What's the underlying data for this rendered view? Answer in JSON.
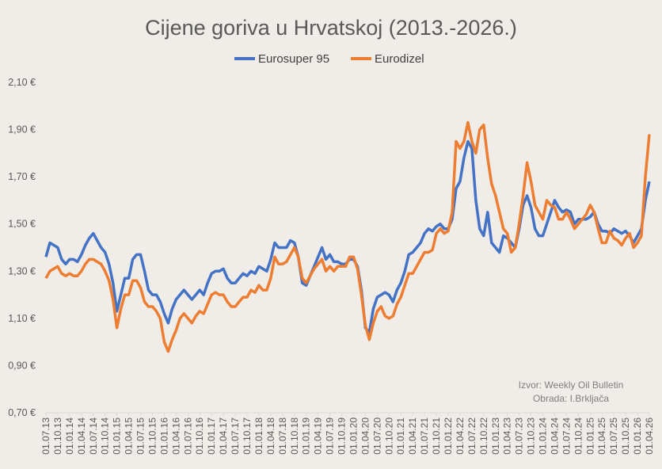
{
  "colors": {
    "eurosuper": "#4472C4",
    "eurodizel": "#ED7D31",
    "background": "#F0EDE9",
    "axis": "#D9D9D9"
  },
  "chart_data": {
    "type": "line",
    "title": "Cijene goriva u Hrvatskoj (2013.-2026.)",
    "xlabel": "",
    "ylabel": "",
    "ylim": [
      0.7,
      2.1
    ],
    "yticks": [
      "0,70 €",
      "0,90 €",
      "1,10 €",
      "1,30 €",
      "1,50 €",
      "1,70 €",
      "1,90 €",
      "2,10 €"
    ],
    "ytick_values": [
      0.7,
      0.9,
      1.1,
      1.3,
      1.5,
      1.7,
      1.9,
      2.1
    ],
    "xticks": [
      "01.07.13",
      "01.10.13",
      "01.01.14",
      "01.04.14",
      "01.07.14",
      "01.10.14",
      "01.01.15",
      "01.04.15",
      "01.07.15",
      "01.10.15",
      "01.01.16",
      "01.04.16",
      "01.07.16",
      "01.10.16",
      "01.01.17",
      "01.04.17",
      "01.07.17",
      "01.10.17",
      "01.01.18",
      "01.04.18",
      "01.07.18",
      "01.10.18",
      "01.01.19",
      "01.04.19",
      "01.07.19",
      "01.10.19",
      "01.01.20",
      "01.04.20",
      "01.07.20",
      "01.10.20",
      "01.01.21",
      "01.04.21",
      "01.07.21",
      "01.10.21",
      "01.01.22",
      "01.04.22",
      "01.07.22",
      "01.10.22",
      "01.01.23",
      "01.04.23",
      "01.07.23",
      "01.10.23",
      "01.01.24",
      "01.04.24",
      "01.07.24",
      "01.10.24",
      "01.01.25",
      "01.04.25",
      "01.07.25",
      "01.10.25",
      "01.01.26",
      "01.04.26"
    ],
    "x_note": "monthly values from 07.2013 to 04.2026",
    "grid": false,
    "legend_position": "top",
    "series": [
      {
        "name": "Eurosuper 95",
        "values": [
          1.36,
          1.42,
          1.41,
          1.4,
          1.35,
          1.33,
          1.35,
          1.35,
          1.34,
          1.37,
          1.41,
          1.44,
          1.46,
          1.43,
          1.4,
          1.38,
          1.33,
          1.25,
          1.13,
          1.2,
          1.27,
          1.27,
          1.35,
          1.37,
          1.37,
          1.3,
          1.22,
          1.2,
          1.2,
          1.17,
          1.12,
          1.08,
          1.14,
          1.18,
          1.2,
          1.22,
          1.2,
          1.18,
          1.2,
          1.22,
          1.2,
          1.25,
          1.29,
          1.3,
          1.3,
          1.31,
          1.27,
          1.25,
          1.25,
          1.27,
          1.29,
          1.28,
          1.3,
          1.29,
          1.32,
          1.31,
          1.3,
          1.35,
          1.42,
          1.4,
          1.4,
          1.4,
          1.43,
          1.42,
          1.36,
          1.25,
          1.24,
          1.28,
          1.32,
          1.36,
          1.4,
          1.35,
          1.37,
          1.34,
          1.34,
          1.33,
          1.33,
          1.35,
          1.35,
          1.32,
          1.22,
          1.06,
          1.04,
          1.14,
          1.19,
          1.2,
          1.21,
          1.2,
          1.17,
          1.22,
          1.25,
          1.3,
          1.37,
          1.38,
          1.4,
          1.42,
          1.46,
          1.48,
          1.47,
          1.49,
          1.5,
          1.48,
          1.48,
          1.52,
          1.65,
          1.68,
          1.78,
          1.85,
          1.82,
          1.6,
          1.48,
          1.45,
          1.55,
          1.42,
          1.4,
          1.38,
          1.45,
          1.44,
          1.42,
          1.4,
          1.48,
          1.58,
          1.62,
          1.57,
          1.48,
          1.45,
          1.45,
          1.5,
          1.55,
          1.6,
          1.57,
          1.55,
          1.56,
          1.55,
          1.5,
          1.52,
          1.52,
          1.52,
          1.53,
          1.55,
          1.5,
          1.47,
          1.47,
          1.46,
          1.48,
          1.47,
          1.46,
          1.47,
          1.45,
          1.42,
          1.45,
          1.48,
          1.6,
          1.68
        ]
      },
      {
        "name": "Eurodizel",
        "values": [
          1.27,
          1.3,
          1.31,
          1.32,
          1.29,
          1.28,
          1.29,
          1.28,
          1.28,
          1.3,
          1.33,
          1.35,
          1.35,
          1.34,
          1.33,
          1.3,
          1.26,
          1.18,
          1.06,
          1.14,
          1.2,
          1.2,
          1.26,
          1.26,
          1.23,
          1.17,
          1.15,
          1.15,
          1.13,
          1.1,
          1.0,
          0.96,
          1.01,
          1.05,
          1.1,
          1.12,
          1.1,
          1.08,
          1.11,
          1.13,
          1.12,
          1.16,
          1.2,
          1.21,
          1.2,
          1.2,
          1.17,
          1.15,
          1.15,
          1.17,
          1.19,
          1.19,
          1.22,
          1.21,
          1.24,
          1.22,
          1.22,
          1.27,
          1.36,
          1.33,
          1.33,
          1.34,
          1.37,
          1.4,
          1.36,
          1.27,
          1.25,
          1.28,
          1.31,
          1.33,
          1.35,
          1.3,
          1.32,
          1.3,
          1.32,
          1.32,
          1.32,
          1.36,
          1.36,
          1.31,
          1.2,
          1.07,
          1.01,
          1.08,
          1.13,
          1.15,
          1.11,
          1.1,
          1.11,
          1.16,
          1.19,
          1.24,
          1.29,
          1.29,
          1.32,
          1.35,
          1.38,
          1.38,
          1.39,
          1.46,
          1.48,
          1.46,
          1.47,
          1.55,
          1.85,
          1.82,
          1.85,
          1.93,
          1.85,
          1.8,
          1.9,
          1.92,
          1.78,
          1.67,
          1.62,
          1.55,
          1.48,
          1.46,
          1.38,
          1.4,
          1.5,
          1.62,
          1.76,
          1.68,
          1.58,
          1.55,
          1.52,
          1.6,
          1.58,
          1.57,
          1.52,
          1.52,
          1.55,
          1.52,
          1.48,
          1.5,
          1.52,
          1.54,
          1.58,
          1.55,
          1.48,
          1.42,
          1.42,
          1.47,
          1.44,
          1.43,
          1.41,
          1.44,
          1.46,
          1.4,
          1.42,
          1.45,
          1.7,
          1.88
        ]
      }
    ],
    "annotations": [
      "Izvor: Weekly Oil Bulletin",
      "Obrada: I.Brkljača"
    ]
  }
}
